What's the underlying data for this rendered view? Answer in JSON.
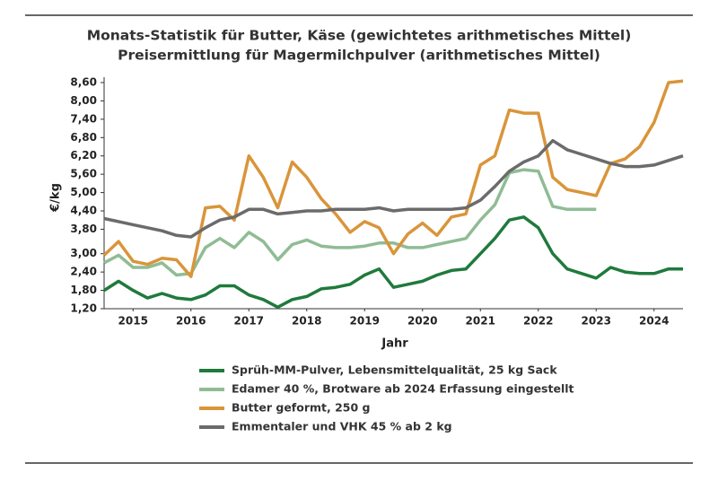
{
  "chart_data": {
    "type": "line",
    "title": "Monats-Statistik für Butter, Käse (gewichtetes arithmetisches Mittel)",
    "subtitle": "Preisermittlung für Magermilchpulver (arithmetisches Mittel)",
    "y_label": "€/kg",
    "x_label": "Jahr",
    "x": [
      2015,
      2015.25,
      2015.5,
      2015.75,
      2016,
      2016.25,
      2016.5,
      2016.75,
      2017,
      2017.25,
      2017.5,
      2017.75,
      2018,
      2018.25,
      2018.5,
      2018.75,
      2019,
      2019.25,
      2019.5,
      2019.75,
      2020,
      2020.25,
      2020.5,
      2020.75,
      2021,
      2021.25,
      2021.5,
      2021.75,
      2022,
      2022.25,
      2022.5,
      2022.75,
      2023,
      2023.25,
      2023.5,
      2023.75,
      2024,
      2024.25,
      2024.5,
      2024.75,
      2025
    ],
    "xlim": [
      2015,
      2025
    ],
    "xticks": [
      {
        "value": 2015.5,
        "label": "2015"
      },
      {
        "value": 2016.5,
        "label": "2016"
      },
      {
        "value": 2017.5,
        "label": "2017"
      },
      {
        "value": 2018.5,
        "label": "2018"
      },
      {
        "value": 2019.5,
        "label": "2019"
      },
      {
        "value": 2020.5,
        "label": "2020"
      },
      {
        "value": 2021.5,
        "label": "2021"
      },
      {
        "value": 2022.5,
        "label": "2022"
      },
      {
        "value": 2023.5,
        "label": "2023"
      },
      {
        "value": 2024.5,
        "label": "2024"
      }
    ],
    "ylim": [
      1.2,
      8.6
    ],
    "yticks": [
      {
        "value": 1.2,
        "label": "1,20"
      },
      {
        "value": 1.8,
        "label": "1,80"
      },
      {
        "value": 2.4,
        "label": "2,40"
      },
      {
        "value": 3.0,
        "label": "3,00"
      },
      {
        "value": 3.8,
        "label": "3,80"
      },
      {
        "value": 4.4,
        "label": "4,40"
      },
      {
        "value": 5.0,
        "label": "5,00"
      },
      {
        "value": 5.6,
        "label": "5,60"
      },
      {
        "value": 6.2,
        "label": "6,20"
      },
      {
        "value": 6.8,
        "label": "6,80"
      },
      {
        "value": 7.4,
        "label": "7,40"
      },
      {
        "value": 8.0,
        "label": "8,00"
      },
      {
        "value": 8.6,
        "label": "8,60"
      }
    ],
    "series": [
      {
        "name": "Sprüh-MM-Pulver, Lebensmittelqualität, 25 kg Sack",
        "color": "#1f7a3c",
        "values": [
          1.8,
          2.1,
          1.8,
          1.55,
          1.7,
          1.55,
          1.5,
          1.65,
          1.95,
          1.95,
          1.65,
          1.5,
          1.25,
          1.5,
          1.6,
          1.85,
          1.9,
          2.0,
          2.3,
          2.5,
          1.9,
          2.0,
          2.1,
          2.3,
          2.45,
          2.5,
          3.0,
          3.5,
          4.1,
          4.2,
          3.85,
          3.0,
          2.5,
          2.35,
          2.2,
          2.55,
          2.4,
          2.35,
          2.35,
          2.5,
          2.5
        ]
      },
      {
        "name": "Edamer 40 %, Brotware ab 2024 Erfassung eingestellt",
        "color": "#8fbc94",
        "values": [
          2.7,
          2.95,
          2.55,
          2.55,
          2.7,
          2.3,
          2.35,
          3.2,
          3.5,
          3.2,
          3.7,
          3.4,
          2.8,
          3.3,
          3.45,
          3.25,
          3.2,
          3.2,
          3.25,
          3.35,
          3.35,
          3.2,
          3.2,
          3.3,
          3.4,
          3.5,
          4.1,
          4.6,
          5.65,
          5.75,
          5.7,
          4.55,
          4.45,
          4.45,
          4.45,
          null,
          null,
          null,
          null,
          null,
          null
        ]
      },
      {
        "name": "Butter geformt, 250 g",
        "color": "#d9953a",
        "values": [
          2.95,
          3.4,
          2.75,
          2.65,
          2.85,
          2.8,
          2.25,
          4.5,
          4.55,
          4.1,
          6.2,
          5.5,
          4.5,
          6.0,
          5.5,
          4.8,
          4.3,
          3.7,
          4.05,
          3.85,
          3.0,
          3.65,
          4.0,
          3.6,
          4.2,
          4.3,
          5.9,
          6.2,
          7.7,
          7.6,
          7.6,
          5.5,
          5.1,
          5.0,
          4.9,
          5.95,
          6.1,
          6.5,
          7.3,
          8.6,
          8.65
        ]
      },
      {
        "name": "Emmentaler und VHK 45 % ab 2 kg",
        "color": "#6b6b6b",
        "values": [
          4.15,
          4.05,
          3.95,
          3.85,
          3.75,
          3.6,
          3.55,
          3.85,
          4.1,
          4.2,
          4.45,
          4.45,
          4.3,
          4.35,
          4.4,
          4.4,
          4.45,
          4.45,
          4.45,
          4.5,
          4.4,
          4.45,
          4.45,
          4.45,
          4.45,
          4.5,
          4.75,
          5.2,
          5.7,
          6.0,
          6.2,
          6.7,
          6.4,
          6.25,
          6.1,
          5.95,
          5.85,
          5.85,
          5.9,
          6.05,
          6.2
        ]
      }
    ]
  }
}
